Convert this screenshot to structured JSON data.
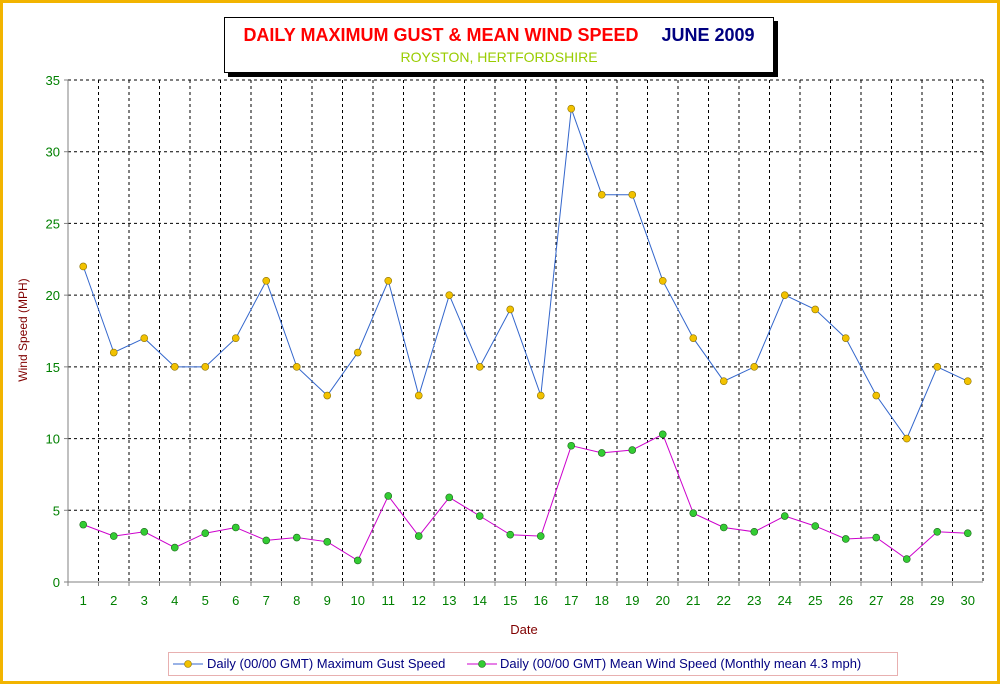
{
  "title": {
    "main": "DAILY MAXIMUM GUST & MEAN WIND SPEED",
    "month": "JUNE 2009",
    "subtitle": "ROYSTON, HERTFORDSHIRE"
  },
  "colors": {
    "frame": "#f2b400",
    "gust_line": "#3366cc",
    "gust_marker": "#f2c200",
    "mean_line": "#cc00cc",
    "mean_marker": "#33cc33",
    "axis_text": "#008000",
    "axis_title": "#800000"
  },
  "chart_data": {
    "type": "line",
    "xlabel": "Date",
    "ylabel": "Wind Speed (MPH)",
    "ylim": [
      0,
      35
    ],
    "y_ticks": [
      0,
      5,
      10,
      15,
      20,
      25,
      30,
      35
    ],
    "grid": true,
    "legend_position": "bottom",
    "categories": [
      "1",
      "2",
      "3",
      "4",
      "5",
      "6",
      "7",
      "8",
      "9",
      "10",
      "11",
      "12",
      "13",
      "14",
      "15",
      "16",
      "17",
      "18",
      "19",
      "20",
      "21",
      "22",
      "23",
      "24",
      "25",
      "26",
      "27",
      "28",
      "29",
      "30"
    ],
    "series": [
      {
        "name": "Daily (00/00 GMT) Maximum Gust Speed",
        "values": [
          22,
          16,
          17,
          15,
          15,
          17,
          21,
          15,
          13,
          16,
          21,
          13,
          20,
          15,
          19,
          13,
          33,
          27,
          27,
          21,
          17,
          14,
          15,
          20,
          19,
          17,
          13,
          10,
          15,
          14
        ]
      },
      {
        "name": "Daily (00/00 GMT) Mean Wind Speed (Monthly mean 4.3 mph)",
        "values": [
          4.0,
          3.2,
          3.5,
          2.4,
          3.4,
          3.8,
          2.9,
          3.1,
          2.8,
          1.5,
          6.0,
          3.2,
          5.9,
          4.6,
          3.3,
          3.2,
          9.5,
          9.0,
          9.2,
          10.3,
          4.8,
          3.8,
          3.5,
          4.6,
          3.9,
          3.0,
          3.1,
          1.6,
          3.5,
          3.4
        ]
      }
    ]
  }
}
